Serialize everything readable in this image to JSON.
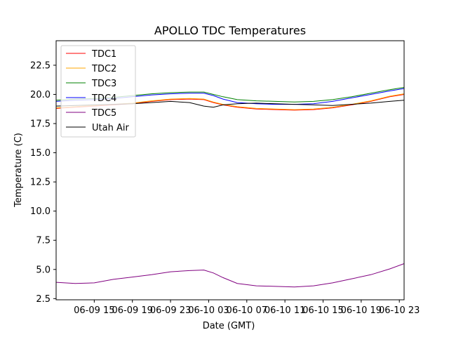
{
  "chart_data": {
    "type": "line",
    "title": "APOLLO TDC Temperatures",
    "xlabel": "Date (GMT)",
    "ylabel": "Temperature (C)",
    "xlim": [
      11.0,
      47.5
    ],
    "ylim": [
      2.4,
      24.6
    ],
    "x_unit": "hours since 06-09 00:00 GMT",
    "x_ticks": [
      {
        "x": 15,
        "label": "06-09 15"
      },
      {
        "x": 19,
        "label": "06-09 19"
      },
      {
        "x": 23,
        "label": "06-09 23"
      },
      {
        "x": 27,
        "label": "06-10 03"
      },
      {
        "x": 31,
        "label": "06-10 07"
      },
      {
        "x": 35,
        "label": "06-10 11"
      },
      {
        "x": 39,
        "label": "06-10 15"
      },
      {
        "x": 43,
        "label": "06-10 19"
      },
      {
        "x": 47,
        "label": "06-10 23"
      }
    ],
    "y_ticks": [
      {
        "y": 2.5,
        "label": "2.5"
      },
      {
        "y": 5.0,
        "label": "5.0"
      },
      {
        "y": 7.5,
        "label": "7.5"
      },
      {
        "y": 10.0,
        "label": "10.0"
      },
      {
        "y": 12.5,
        "label": "12.5"
      },
      {
        "y": 15.0,
        "label": "15.0"
      },
      {
        "y": 17.5,
        "label": "17.5"
      },
      {
        "y": 20.0,
        "label": "20.0"
      },
      {
        "y": 22.5,
        "label": "22.5"
      }
    ],
    "legend_position": "top-left",
    "series": [
      {
        "name": "TDC1",
        "color": "#ff0000",
        "x": [
          11,
          13,
          15,
          17,
          19,
          21,
          23,
          25,
          26.5,
          27.5,
          28.5,
          30,
          32,
          34,
          36,
          38,
          40,
          42,
          44,
          46,
          47.5
        ],
        "y": [
          18.8,
          18.9,
          19.0,
          19.1,
          19.2,
          19.4,
          19.55,
          19.6,
          19.55,
          19.3,
          19.1,
          18.9,
          18.75,
          18.7,
          18.65,
          18.7,
          18.85,
          19.1,
          19.4,
          19.8,
          20.0
        ]
      },
      {
        "name": "TDC2",
        "color": "#ffa500",
        "x": [
          11,
          13,
          15,
          17,
          19,
          21,
          23,
          25,
          26.5,
          27.5,
          28.5,
          30,
          32,
          34,
          36,
          38,
          40,
          42,
          44,
          46,
          47.5
        ],
        "y": [
          18.85,
          18.95,
          19.05,
          19.15,
          19.25,
          19.45,
          19.6,
          19.65,
          19.6,
          19.35,
          19.15,
          18.95,
          18.8,
          18.75,
          18.7,
          18.75,
          18.9,
          19.15,
          19.45,
          19.85,
          20.05
        ]
      },
      {
        "name": "TDC3",
        "color": "#008000",
        "x": [
          11,
          13,
          15,
          17,
          19,
          21,
          23,
          25,
          26.5,
          27.5,
          28.5,
          30,
          32,
          34,
          36,
          38,
          40,
          42,
          44,
          46,
          47.5
        ],
        "y": [
          19.5,
          19.6,
          19.65,
          19.75,
          19.9,
          20.05,
          20.15,
          20.2,
          20.2,
          20.0,
          19.8,
          19.55,
          19.45,
          19.4,
          19.35,
          19.4,
          19.55,
          19.8,
          20.1,
          20.4,
          20.6
        ]
      },
      {
        "name": "TDC4",
        "color": "#0000ff",
        "x": [
          11,
          13,
          15,
          17,
          19,
          21,
          23,
          25,
          26.5,
          27.5,
          28.5,
          30,
          32,
          34,
          36,
          38,
          40,
          42,
          44,
          46,
          47.5
        ],
        "y": [
          19.4,
          19.5,
          19.55,
          19.65,
          19.8,
          19.95,
          20.05,
          20.1,
          20.1,
          19.9,
          19.6,
          19.3,
          19.2,
          19.15,
          19.15,
          19.2,
          19.4,
          19.7,
          20.0,
          20.3,
          20.5
        ]
      },
      {
        "name": "TDC5",
        "color": "#800080",
        "x": [
          11,
          13,
          15,
          17,
          19,
          21,
          23,
          25,
          26.5,
          27.5,
          28.5,
          30,
          32,
          34,
          36,
          38,
          40,
          42,
          44,
          46,
          47.5
        ],
        "y": [
          3.9,
          3.8,
          3.85,
          4.15,
          4.35,
          4.55,
          4.8,
          4.9,
          4.95,
          4.7,
          4.3,
          3.8,
          3.6,
          3.55,
          3.5,
          3.6,
          3.85,
          4.2,
          4.55,
          5.05,
          5.5
        ]
      },
      {
        "name": "Utah Air",
        "color": "#000000",
        "x": [
          11,
          13,
          15,
          17,
          19,
          21,
          23,
          25,
          26.5,
          27.5,
          28.5,
          30,
          32,
          34,
          36,
          38,
          40,
          42,
          44,
          46,
          47.5
        ],
        "y": [
          19.0,
          19.05,
          19.1,
          19.15,
          19.2,
          19.3,
          19.4,
          19.3,
          19.0,
          18.9,
          19.1,
          19.2,
          19.25,
          19.2,
          19.15,
          19.1,
          19.05,
          19.15,
          19.25,
          19.4,
          19.5
        ]
      }
    ]
  }
}
